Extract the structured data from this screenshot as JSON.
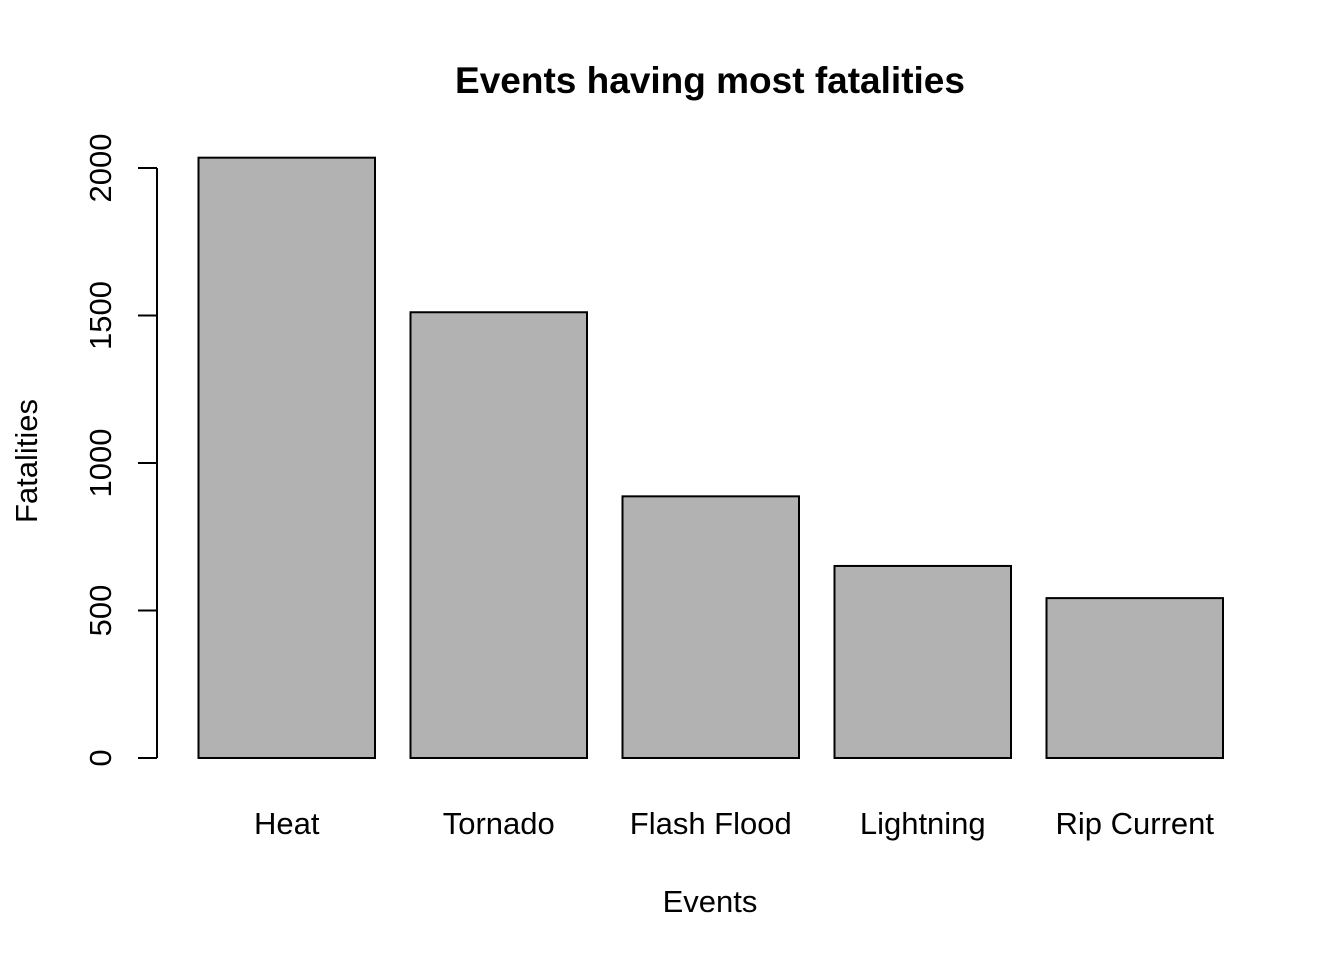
{
  "chart_data": {
    "type": "bar",
    "title": "Events having most fatalities",
    "xlabel": "Events",
    "ylabel": "Fatalities",
    "categories": [
      "Heat",
      "Tornado",
      "Flash Flood",
      "Lightning",
      "Rip Current"
    ],
    "values": [
      2035,
      1511,
      887,
      651,
      542
    ],
    "ylim": [
      0,
      2000
    ],
    "yticks": [
      "0",
      "500",
      "1000",
      "1500",
      "2000"
    ],
    "bar_color": "#b2b2b2",
    "grid": false,
    "legend": "none"
  }
}
